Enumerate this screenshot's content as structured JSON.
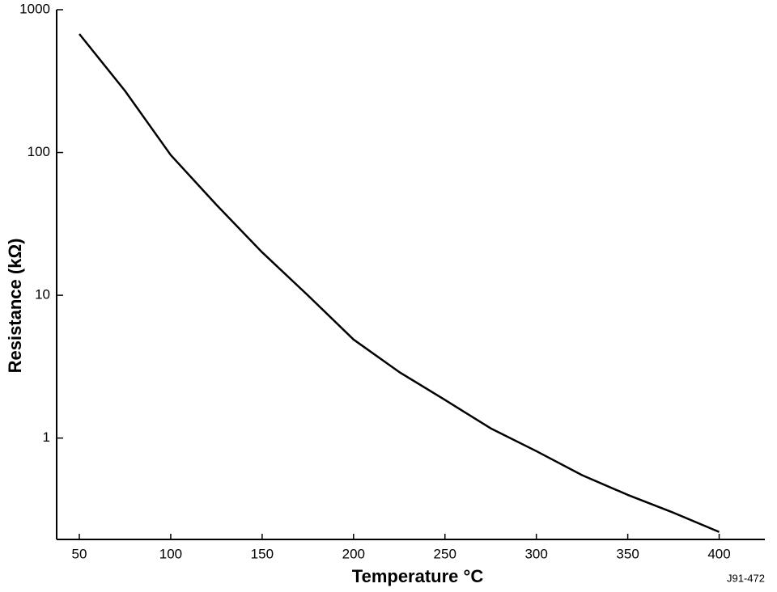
{
  "chart_data": {
    "type": "line",
    "xlabel": "Temperature °C",
    "ylabel": "Resistance (kΩ)",
    "annotation": "J91-472",
    "x": [
      50,
      75,
      100,
      125,
      150,
      175,
      200,
      225,
      250,
      275,
      300,
      325,
      350,
      375,
      400
    ],
    "series": [
      {
        "name": "Resistance",
        "color": "#000000",
        "values": [
          676,
          270,
          96,
          43,
          20,
          10,
          4.9,
          2.9,
          1.85,
          1.17,
          0.81,
          0.55,
          0.4,
          0.3,
          0.22
        ]
      }
    ],
    "xlim": [
      37.6,
      425
    ],
    "ylim": [
      0.195,
      1000
    ],
    "xticks": [
      50,
      100,
      150,
      200,
      250,
      300,
      350,
      400
    ],
    "yticks": [
      1,
      10,
      100,
      1000
    ],
    "log_y": true,
    "grid": false
  }
}
